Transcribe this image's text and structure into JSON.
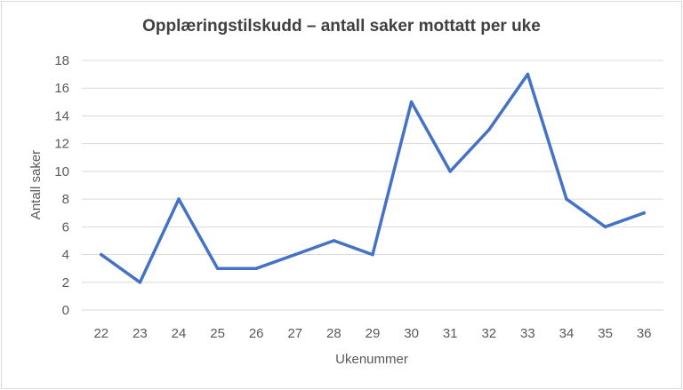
{
  "chart_data": {
    "type": "line",
    "title": "Opplæringstilskudd – antall saker mottatt per uke",
    "xlabel": "Ukenummer",
    "ylabel": "Antall saker",
    "categories": [
      "22",
      "23",
      "24",
      "25",
      "26",
      "27",
      "28",
      "29",
      "30",
      "31",
      "32",
      "33",
      "34",
      "35",
      "36"
    ],
    "series": [
      {
        "values": [
          4,
          2,
          8,
          3,
          3,
          4,
          5,
          4,
          15,
          10,
          13,
          17,
          8,
          6,
          7
        ]
      }
    ],
    "ylim": [
      0,
      18
    ],
    "yticks": [
      0,
      2,
      4,
      6,
      8,
      10,
      12,
      14,
      16,
      18
    ],
    "grid": true,
    "legend": "none",
    "colors": {
      "line": "#4472c4",
      "grid": "#d9d9d9",
      "text": "#595959"
    }
  }
}
